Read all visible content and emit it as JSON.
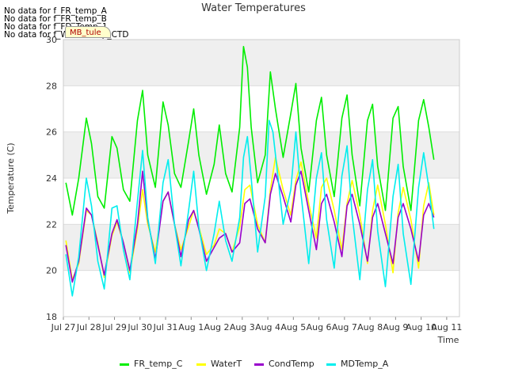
{
  "nodata_messages": [
    "No data for f_FR_temp_A",
    "No data for f_FR_temp_B",
    "No data for f_FD_Temp_1",
    "No data for f_WaterTemp_CTD"
  ],
  "badge_text": "MB_tule",
  "chart_data": {
    "type": "line",
    "title": "Water Temperatures",
    "xlabel": "Time",
    "ylabel": "Temperature (C)",
    "ylim": [
      18,
      30
    ],
    "yticks": [
      18,
      20,
      22,
      24,
      26,
      28,
      30
    ],
    "xlim": [
      0,
      15.5
    ],
    "xticks": [
      0,
      1,
      2,
      3,
      4,
      5,
      6,
      7,
      8,
      9,
      10,
      11,
      12,
      13,
      14,
      15
    ],
    "xtick_labels": [
      "Jul 27",
      "Jul 28",
      "Jul 29",
      "Jul 30",
      "Jul 31",
      "Aug 1",
      "Aug 2",
      "Aug 3",
      "Aug 4",
      "Aug 5",
      "Aug 6",
      "Aug 7",
      "Aug 8",
      "Aug 9",
      "Aug 10",
      "Aug 11"
    ],
    "grid": "horizontal bands",
    "legend": "bottom",
    "series": [
      {
        "name": "FR_temp_C",
        "color": "#00ee00",
        "x": [
          0.1,
          0.35,
          0.6,
          0.9,
          1.1,
          1.35,
          1.6,
          1.9,
          2.1,
          2.35,
          2.6,
          2.9,
          3.1,
          3.3,
          3.6,
          3.9,
          4.1,
          4.35,
          4.6,
          4.9,
          5.1,
          5.3,
          5.6,
          5.9,
          6.1,
          6.35,
          6.6,
          6.9,
          7.05,
          7.2,
          7.35,
          7.6,
          7.9,
          8.1,
          8.3,
          8.6,
          8.9,
          9.1,
          9.3,
          9.6,
          9.9,
          10.1,
          10.3,
          10.6,
          10.9,
          11.1,
          11.3,
          11.6,
          11.9,
          12.1,
          12.3,
          12.6,
          12.9,
          13.1,
          13.3,
          13.6,
          13.9,
          14.1,
          14.3,
          14.5
        ],
        "y": [
          23.8,
          22.4,
          24.0,
          26.6,
          25.5,
          23.2,
          22.7,
          25.8,
          25.3,
          23.5,
          23.0,
          26.5,
          27.8,
          25.0,
          23.6,
          27.3,
          26.3,
          24.2,
          23.6,
          25.6,
          27.0,
          25.0,
          23.3,
          24.6,
          26.3,
          24.2,
          23.4,
          26.2,
          29.7,
          28.8,
          26.2,
          23.8,
          25.0,
          28.6,
          27.0,
          24.9,
          26.8,
          28.1,
          25.3,
          23.4,
          26.5,
          27.5,
          25.0,
          23.2,
          26.6,
          27.6,
          25.0,
          22.8,
          26.5,
          27.2,
          24.5,
          22.6,
          26.6,
          27.1,
          24.5,
          22.6,
          26.5,
          27.4,
          26.2,
          24.8
        ]
      },
      {
        "name": "WaterT",
        "color": "#ffff00",
        "x": [
          0.1,
          0.35,
          0.6,
          0.9,
          1.1,
          1.35,
          1.6,
          1.9,
          2.1,
          2.35,
          2.6,
          2.9,
          3.1,
          3.3,
          3.6,
          3.9,
          4.1,
          4.35,
          4.6,
          4.9,
          5.1,
          5.3,
          5.6,
          5.9,
          6.1,
          6.35,
          6.6,
          6.9,
          7.1,
          7.3,
          7.6,
          7.9,
          8.1,
          8.3,
          8.6,
          8.9,
          9.1,
          9.3,
          9.6,
          9.9,
          10.1,
          10.3,
          10.6,
          10.9,
          11.1,
          11.3,
          11.6,
          11.9,
          12.1,
          12.3,
          12.6,
          12.9,
          13.1,
          13.3,
          13.6,
          13.9,
          14.1,
          14.3,
          14.5
        ],
        "y": [
          21.3,
          19.6,
          20.3,
          22.6,
          22.4,
          21.2,
          19.7,
          21.5,
          22.1,
          21.2,
          19.9,
          21.8,
          23.5,
          22.0,
          20.8,
          23.0,
          23.4,
          22.0,
          20.9,
          21.9,
          22.6,
          21.9,
          20.7,
          21.1,
          21.8,
          21.6,
          20.8,
          21.9,
          23.5,
          23.7,
          22.0,
          21.2,
          23.5,
          24.9,
          23.5,
          22.4,
          23.9,
          24.7,
          22.9,
          21.4,
          23.6,
          24.0,
          22.6,
          20.9,
          22.9,
          23.9,
          22.4,
          20.3,
          22.6,
          23.7,
          22.0,
          19.9,
          22.5,
          23.6,
          22.2,
          20.1,
          22.8,
          23.8,
          22.4
        ]
      },
      {
        "name": "CondTemp",
        "color": "#9900cc",
        "x": [
          0.1,
          0.35,
          0.6,
          0.9,
          1.1,
          1.35,
          1.6,
          1.9,
          2.1,
          2.35,
          2.6,
          2.9,
          3.1,
          3.3,
          3.6,
          3.9,
          4.1,
          4.35,
          4.6,
          4.9,
          5.1,
          5.3,
          5.6,
          5.9,
          6.1,
          6.35,
          6.6,
          6.9,
          7.1,
          7.3,
          7.6,
          7.9,
          8.1,
          8.3,
          8.6,
          8.9,
          9.1,
          9.3,
          9.6,
          9.9,
          10.1,
          10.3,
          10.6,
          10.9,
          11.1,
          11.3,
          11.6,
          11.9,
          12.1,
          12.3,
          12.6,
          12.9,
          13.1,
          13.3,
          13.6,
          13.9,
          14.1,
          14.3,
          14.5
        ],
        "y": [
          21.1,
          19.5,
          20.4,
          22.7,
          22.4,
          21.1,
          19.8,
          21.6,
          22.2,
          21.2,
          20.0,
          22.0,
          24.3,
          22.2,
          20.5,
          23.0,
          23.4,
          22.0,
          20.6,
          22.2,
          22.6,
          21.8,
          20.4,
          21.0,
          21.4,
          21.6,
          20.8,
          21.2,
          22.9,
          23.1,
          21.8,
          21.2,
          23.3,
          24.2,
          23.2,
          22.1,
          23.7,
          24.3,
          22.6,
          20.9,
          22.9,
          23.3,
          22.1,
          20.6,
          22.8,
          23.3,
          22.0,
          20.4,
          22.3,
          22.9,
          21.6,
          20.3,
          22.3,
          22.9,
          21.8,
          20.4,
          22.4,
          22.9,
          22.3
        ]
      },
      {
        "name": "MDTemp_A",
        "color": "#00eeee",
        "x": [
          0.1,
          0.35,
          0.6,
          0.9,
          1.1,
          1.35,
          1.6,
          1.9,
          2.1,
          2.35,
          2.6,
          2.9,
          3.1,
          3.3,
          3.6,
          3.9,
          4.1,
          4.35,
          4.6,
          4.9,
          5.1,
          5.3,
          5.6,
          5.9,
          6.1,
          6.35,
          6.6,
          6.9,
          7.05,
          7.2,
          7.35,
          7.6,
          7.9,
          8.05,
          8.2,
          8.35,
          8.6,
          8.9,
          9.1,
          9.3,
          9.6,
          9.9,
          10.1,
          10.3,
          10.6,
          10.9,
          11.1,
          11.3,
          11.6,
          11.9,
          12.1,
          12.3,
          12.6,
          12.9,
          13.1,
          13.3,
          13.6,
          13.9,
          14.1,
          14.3,
          14.5
        ],
        "y": [
          20.7,
          18.9,
          20.6,
          24.0,
          22.8,
          20.4,
          19.2,
          22.7,
          22.8,
          20.9,
          19.6,
          23.0,
          25.2,
          22.3,
          20.3,
          23.8,
          24.8,
          22.0,
          20.2,
          22.6,
          24.3,
          21.9,
          20.0,
          21.6,
          23.0,
          21.3,
          20.4,
          22.3,
          24.9,
          25.8,
          24.0,
          20.8,
          23.2,
          26.5,
          26.0,
          24.5,
          22.0,
          23.5,
          26.0,
          23.3,
          20.3,
          24.0,
          25.1,
          22.2,
          20.1,
          24.1,
          25.4,
          22.4,
          19.6,
          23.5,
          24.8,
          21.7,
          19.3,
          23.2,
          24.6,
          21.6,
          19.4,
          23.6,
          25.1,
          23.6,
          21.8
        ]
      }
    ]
  }
}
